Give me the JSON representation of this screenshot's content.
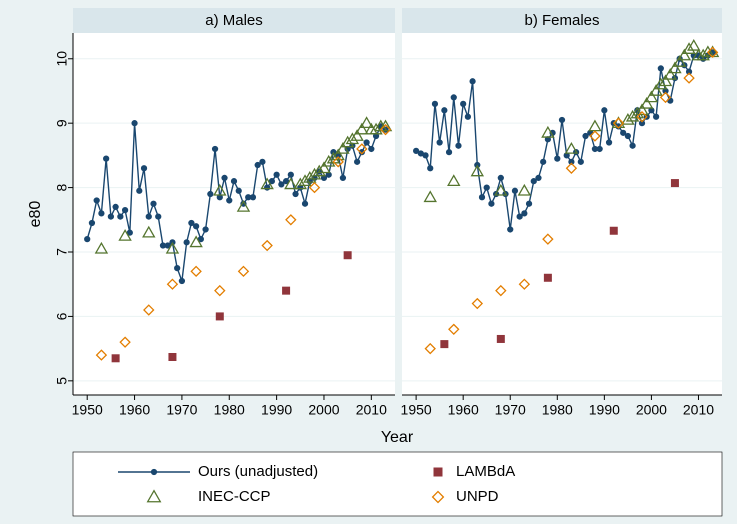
{
  "chart_data": [
    {
      "type": "line",
      "title": "a) Males",
      "ylabel": "e80",
      "xlabel": "Year",
      "xlim": [
        1947,
        2015
      ],
      "xticks": [
        1950,
        1960,
        1970,
        1980,
        1990,
        2000,
        2010
      ],
      "ylim": [
        4.78,
        10.4
      ],
      "yticks": [
        5,
        6,
        7,
        8,
        9,
        10
      ],
      "grid": true,
      "series": [
        {
          "name": "Ours (unadjusted)",
          "color": "#1a476f",
          "marker": "circle",
          "line": true,
          "x": [
            1950,
            1951,
            1952,
            1953,
            1954,
            1955,
            1956,
            1957,
            1958,
            1959,
            1960,
            1961,
            1962,
            1963,
            1964,
            1965,
            1966,
            1967,
            1968,
            1969,
            1970,
            1971,
            1972,
            1973,
            1974,
            1975,
            1976,
            1977,
            1978,
            1979,
            1980,
            1981,
            1982,
            1983,
            1984,
            1985,
            1986,
            1987,
            1988,
            1989,
            1990,
            1991,
            1992,
            1993,
            1994,
            1995,
            1996,
            1997,
            1998,
            1999,
            2000,
            2001,
            2002,
            2003,
            2004,
            2005,
            2006,
            2007,
            2008,
            2009,
            2010,
            2011,
            2012,
            2013
          ],
          "values": [
            7.2,
            7.45,
            7.8,
            7.6,
            8.45,
            7.55,
            7.7,
            7.55,
            7.65,
            7.3,
            9.0,
            7.95,
            8.3,
            7.55,
            7.75,
            7.55,
            7.1,
            7.1,
            7.15,
            6.75,
            6.55,
            7.15,
            7.45,
            7.4,
            7.2,
            7.35,
            7.9,
            8.6,
            7.85,
            8.15,
            7.8,
            8.1,
            7.95,
            7.75,
            7.85,
            7.85,
            8.35,
            8.4,
            8.0,
            8.1,
            8.2,
            8.05,
            8.1,
            8.2,
            7.9,
            8.0,
            7.75,
            8.1,
            8.15,
            8.25,
            8.15,
            8.2,
            8.55,
            8.5,
            8.15,
            8.6,
            8.65,
            8.4,
            8.55,
            8.7,
            8.6,
            8.8,
            8.95,
            8.9
          ]
        },
        {
          "name": "LAMBdA",
          "color": "#90353b",
          "marker": "square",
          "x": [
            1956,
            1968,
            1978,
            1992,
            2005
          ],
          "values": [
            5.35,
            5.37,
            6.0,
            6.4,
            6.95
          ]
        },
        {
          "name": "INEC-CCP",
          "color": "#55752f",
          "marker": "triangle",
          "x": [
            1953,
            1958,
            1963,
            1968,
            1973,
            1978,
            1983,
            1988,
            1993,
            1995,
            1996,
            1997,
            1998,
            1999,
            2000,
            2001,
            2002,
            2003,
            2004,
            2005,
            2006,
            2007,
            2008,
            2009,
            2010,
            2011,
            2012,
            2013
          ],
          "values": [
            7.05,
            7.25,
            7.3,
            7.05,
            7.15,
            7.95,
            7.7,
            8.05,
            8.05,
            8.05,
            8.1,
            8.15,
            8.2,
            8.25,
            8.3,
            8.4,
            8.45,
            8.5,
            8.6,
            8.7,
            8.75,
            8.8,
            8.9,
            9.0,
            8.9,
            8.9,
            8.95,
            8.95
          ]
        },
        {
          "name": "UNPD",
          "color": "#e37e00",
          "marker": "diamond",
          "x": [
            1953,
            1958,
            1963,
            1968,
            1973,
            1978,
            1983,
            1988,
            1993,
            1998,
            2003,
            2008,
            2013
          ],
          "values": [
            5.4,
            5.6,
            6.1,
            6.5,
            6.7,
            6.4,
            6.7,
            7.1,
            7.5,
            8.0,
            8.4,
            8.6,
            8.9
          ]
        }
      ]
    },
    {
      "type": "line",
      "title": "b) Females",
      "xlim": [
        1947,
        2015
      ],
      "xticks": [
        1950,
        1960,
        1970,
        1980,
        1990,
        2000,
        2010
      ],
      "ylim": [
        4.78,
        10.4
      ],
      "yticks": [
        5,
        6,
        7,
        8,
        9,
        10
      ],
      "grid": true,
      "series": [
        {
          "name": "Ours (unadjusted)",
          "color": "#1a476f",
          "marker": "circle",
          "line": true,
          "x": [
            1950,
            1951,
            1952,
            1953,
            1954,
            1955,
            1956,
            1957,
            1958,
            1959,
            1960,
            1961,
            1962,
            1963,
            1964,
            1965,
            1966,
            1967,
            1968,
            1969,
            1970,
            1971,
            1972,
            1973,
            1974,
            1975,
            1976,
            1977,
            1978,
            1979,
            1980,
            1981,
            1982,
            1983,
            1984,
            1985,
            1986,
            1987,
            1988,
            1989,
            1990,
            1991,
            1992,
            1993,
            1994,
            1995,
            1996,
            1997,
            1998,
            1999,
            2000,
            2001,
            2002,
            2003,
            2004,
            2005,
            2006,
            2007,
            2008,
            2009,
            2010,
            2011,
            2012,
            2013
          ],
          "values": [
            8.57,
            8.53,
            8.5,
            8.3,
            9.3,
            8.7,
            9.2,
            8.55,
            9.4,
            8.65,
            9.3,
            9.1,
            9.65,
            8.35,
            7.85,
            8.0,
            7.75,
            7.9,
            8.15,
            7.9,
            7.35,
            7.95,
            7.55,
            7.6,
            7.75,
            8.1,
            8.15,
            8.4,
            8.75,
            8.85,
            8.45,
            9.05,
            8.5,
            8.4,
            8.55,
            8.4,
            8.8,
            8.85,
            8.6,
            8.6,
            9.2,
            8.7,
            9.0,
            8.95,
            8.85,
            8.8,
            8.65,
            9.2,
            9.0,
            9.1,
            9.2,
            9.1,
            9.85,
            9.5,
            9.35,
            9.7,
            10.0,
            9.9,
            9.8,
            10.05,
            10.05,
            10.0,
            10.05,
            10.1
          ]
        },
        {
          "name": "LAMBdA",
          "color": "#90353b",
          "marker": "square",
          "x": [
            1956,
            1968,
            1978,
            1992,
            2005
          ],
          "values": [
            5.57,
            5.65,
            6.6,
            7.33,
            8.07
          ]
        },
        {
          "name": "INEC-CCP",
          "color": "#55752f",
          "marker": "triangle",
          "x": [
            1953,
            1958,
            1963,
            1968,
            1973,
            1978,
            1983,
            1988,
            1993,
            1995,
            1996,
            1997,
            1998,
            1999,
            2000,
            2001,
            2002,
            2003,
            2004,
            2005,
            2006,
            2007,
            2008,
            2009,
            2010,
            2011,
            2012,
            2013
          ],
          "values": [
            7.85,
            8.1,
            8.25,
            7.95,
            7.95,
            8.85,
            8.6,
            8.95,
            9.0,
            9.05,
            9.1,
            9.15,
            9.2,
            9.3,
            9.4,
            9.5,
            9.6,
            9.65,
            9.75,
            9.85,
            9.95,
            10.05,
            10.15,
            10.2,
            10.05,
            10.05,
            10.1,
            10.1
          ]
        },
        {
          "name": "UNPD",
          "color": "#e37e00",
          "marker": "diamond",
          "x": [
            1953,
            1958,
            1963,
            1968,
            1973,
            1978,
            1983,
            1988,
            1993,
            1998,
            2003,
            2008,
            2013
          ],
          "values": [
            5.5,
            5.8,
            6.2,
            6.4,
            6.5,
            7.2,
            8.3,
            8.8,
            9.0,
            9.1,
            9.4,
            9.7,
            10.1
          ]
        }
      ]
    }
  ]
}
